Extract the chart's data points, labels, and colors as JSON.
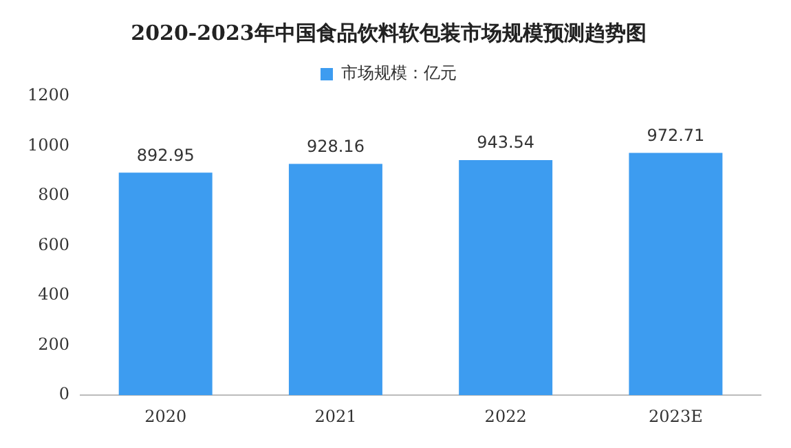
{
  "chart_data": {
    "type": "bar",
    "title": "2020-2023年中国食品饮料软包装市场规模预测趋势图",
    "categories": [
      "2020",
      "2021",
      "2022",
      "2023E"
    ],
    "series": [
      {
        "name": "市场规模：亿元",
        "color": "#3d9cf0",
        "values": [
          892.95,
          928.16,
          943.54,
          972.71
        ]
      }
    ],
    "ylim": [
      0,
      1200
    ],
    "yticks": [
      0,
      200,
      400,
      600,
      800,
      1000,
      1200
    ],
    "grid": false,
    "legend": "top",
    "data_labels": true
  }
}
